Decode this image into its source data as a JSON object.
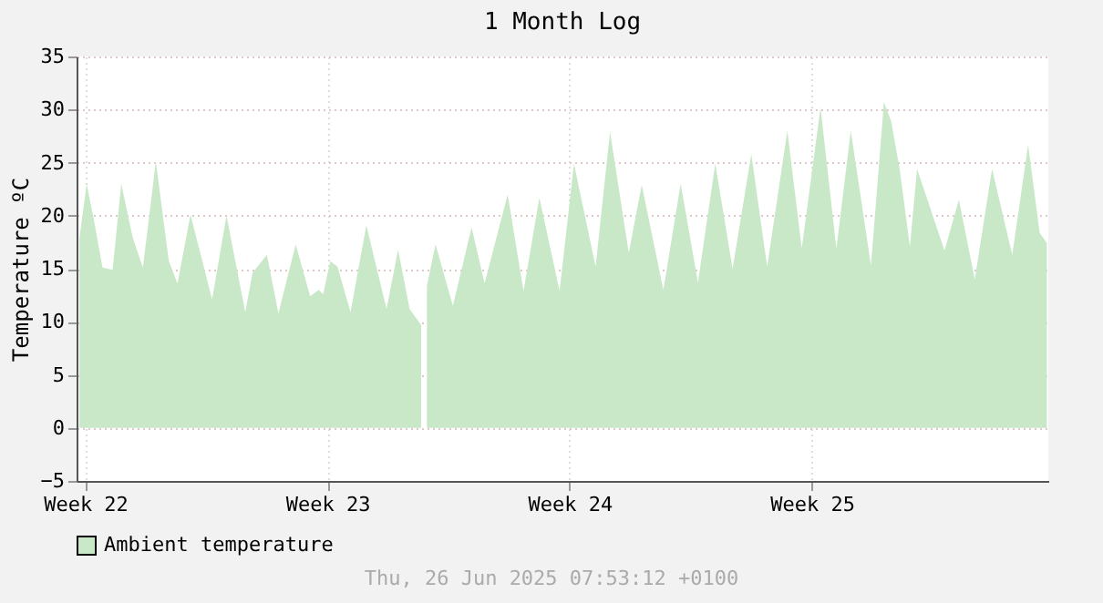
{
  "chart_data": {
    "type": "area",
    "title": "1 Month Log",
    "ylabel": "Temperature ºC",
    "annotations": [
      "Thu, 26 Jun 2025 07:53:12 +0100"
    ],
    "x": [
      "2025-05-29T08:00",
      "2025-05-29T13:00",
      "2025-05-29T18:00",
      "2025-05-30T00:00",
      "2025-05-30T07:00",
      "2025-05-30T13:00",
      "2025-05-30T21:00",
      "2025-05-31T04:00",
      "2025-05-31T13:00",
      "2025-05-31T22:00",
      "2025-06-01T04:00",
      "2025-06-01T13:00",
      "2025-06-02T04:00",
      "2025-06-02T14:00",
      "2025-06-03T03:00",
      "2025-06-03T08:00",
      "2025-06-03T18:00",
      "2025-06-04T02:00",
      "2025-06-04T14:00",
      "2025-06-05T00:00",
      "2025-06-05T06:00",
      "2025-06-05T09:00",
      "2025-06-05T14:00",
      "2025-06-05T19:00",
      "2025-06-06T04:00",
      "2025-06-06T15:00",
      "2025-06-07T05:00",
      "2025-06-07T13:00",
      "2025-06-07T21:00",
      "2025-06-08T05:00",
      "2025-06-08T07:00",
      "2025-06-08T09:00",
      "2025-06-08T15:00",
      "2025-06-09T03:00",
      "2025-06-09T16:00",
      "2025-06-10T01:00",
      "2025-06-10T17:00",
      "2025-06-11T04:00",
      "2025-06-11T15:00",
      "2025-06-12T05:00",
      "2025-06-12T15:00",
      "2025-06-13T06:00",
      "2025-06-13T16:00",
      "2025-06-14T05:00",
      "2025-06-14T14:00",
      "2025-06-15T05:00",
      "2025-06-15T17:00",
      "2025-06-16T05:00",
      "2025-06-16T17:00",
      "2025-06-17T05:00",
      "2025-06-17T18:00",
      "2025-06-18T05:00",
      "2025-06-18T19:00",
      "2025-06-19T05:00",
      "2025-06-19T18:00",
      "2025-06-20T05:00",
      "2025-06-20T15:00",
      "2025-06-21T05:00",
      "2025-06-21T14:00",
      "2025-06-21T19:00",
      "2025-06-22T01:00",
      "2025-06-22T08:00",
      "2025-06-22T13:00",
      "2025-06-23T08:00",
      "2025-06-23T18:00",
      "2025-06-24T05:00",
      "2025-06-24T17:00",
      "2025-06-25T07:00",
      "2025-06-25T18:00",
      "2025-06-26T02:00",
      "2025-06-26T07:00"
    ],
    "series": [
      {
        "name": "Ambient temperature",
        "color": "#c8e8c8",
        "values": [
          17.9,
          23.0,
          19.6,
          15.1,
          14.9,
          23.0,
          17.9,
          15.1,
          25.1,
          15.7,
          13.6,
          20.1,
          12.1,
          20.0,
          10.9,
          14.6,
          16.3,
          10.8,
          17.3,
          12.4,
          13.0,
          12.6,
          15.7,
          15.2,
          10.9,
          19.1,
          11.2,
          16.8,
          11.2,
          9.7,
          null,
          13.4,
          17.3,
          11.5,
          18.9,
          13.6,
          22.0,
          12.9,
          21.7,
          12.9,
          24.9,
          15.2,
          27.9,
          16.5,
          22.9,
          13.0,
          23.0,
          13.7,
          24.9,
          15.0,
          25.8,
          15.2,
          28.0,
          16.9,
          30.2,
          16.9,
          28.0,
          15.3,
          30.7,
          28.9,
          24.3,
          17.1,
          24.4,
          16.7,
          21.5,
          14.0,
          24.4,
          16.3,
          26.7,
          18.4,
          17.4
        ]
      }
    ],
    "xlim": [
      "2025-05-29T06:00",
      "2025-06-26T08:00"
    ],
    "xticks": [
      {
        "value": "2025-05-29T12:00",
        "label": "Week 22"
      },
      {
        "value": "2025-06-05T12:00",
        "label": "Week 23"
      },
      {
        "value": "2025-06-12T12:00",
        "label": "Week 24"
      },
      {
        "value": "2025-06-19T12:00",
        "label": "Week 25"
      }
    ],
    "ylim": [
      -5,
      35
    ],
    "yticks": [
      -5,
      0,
      5,
      10,
      15,
      20,
      25,
      30,
      35
    ],
    "grid": true,
    "legend": "bottom left"
  }
}
